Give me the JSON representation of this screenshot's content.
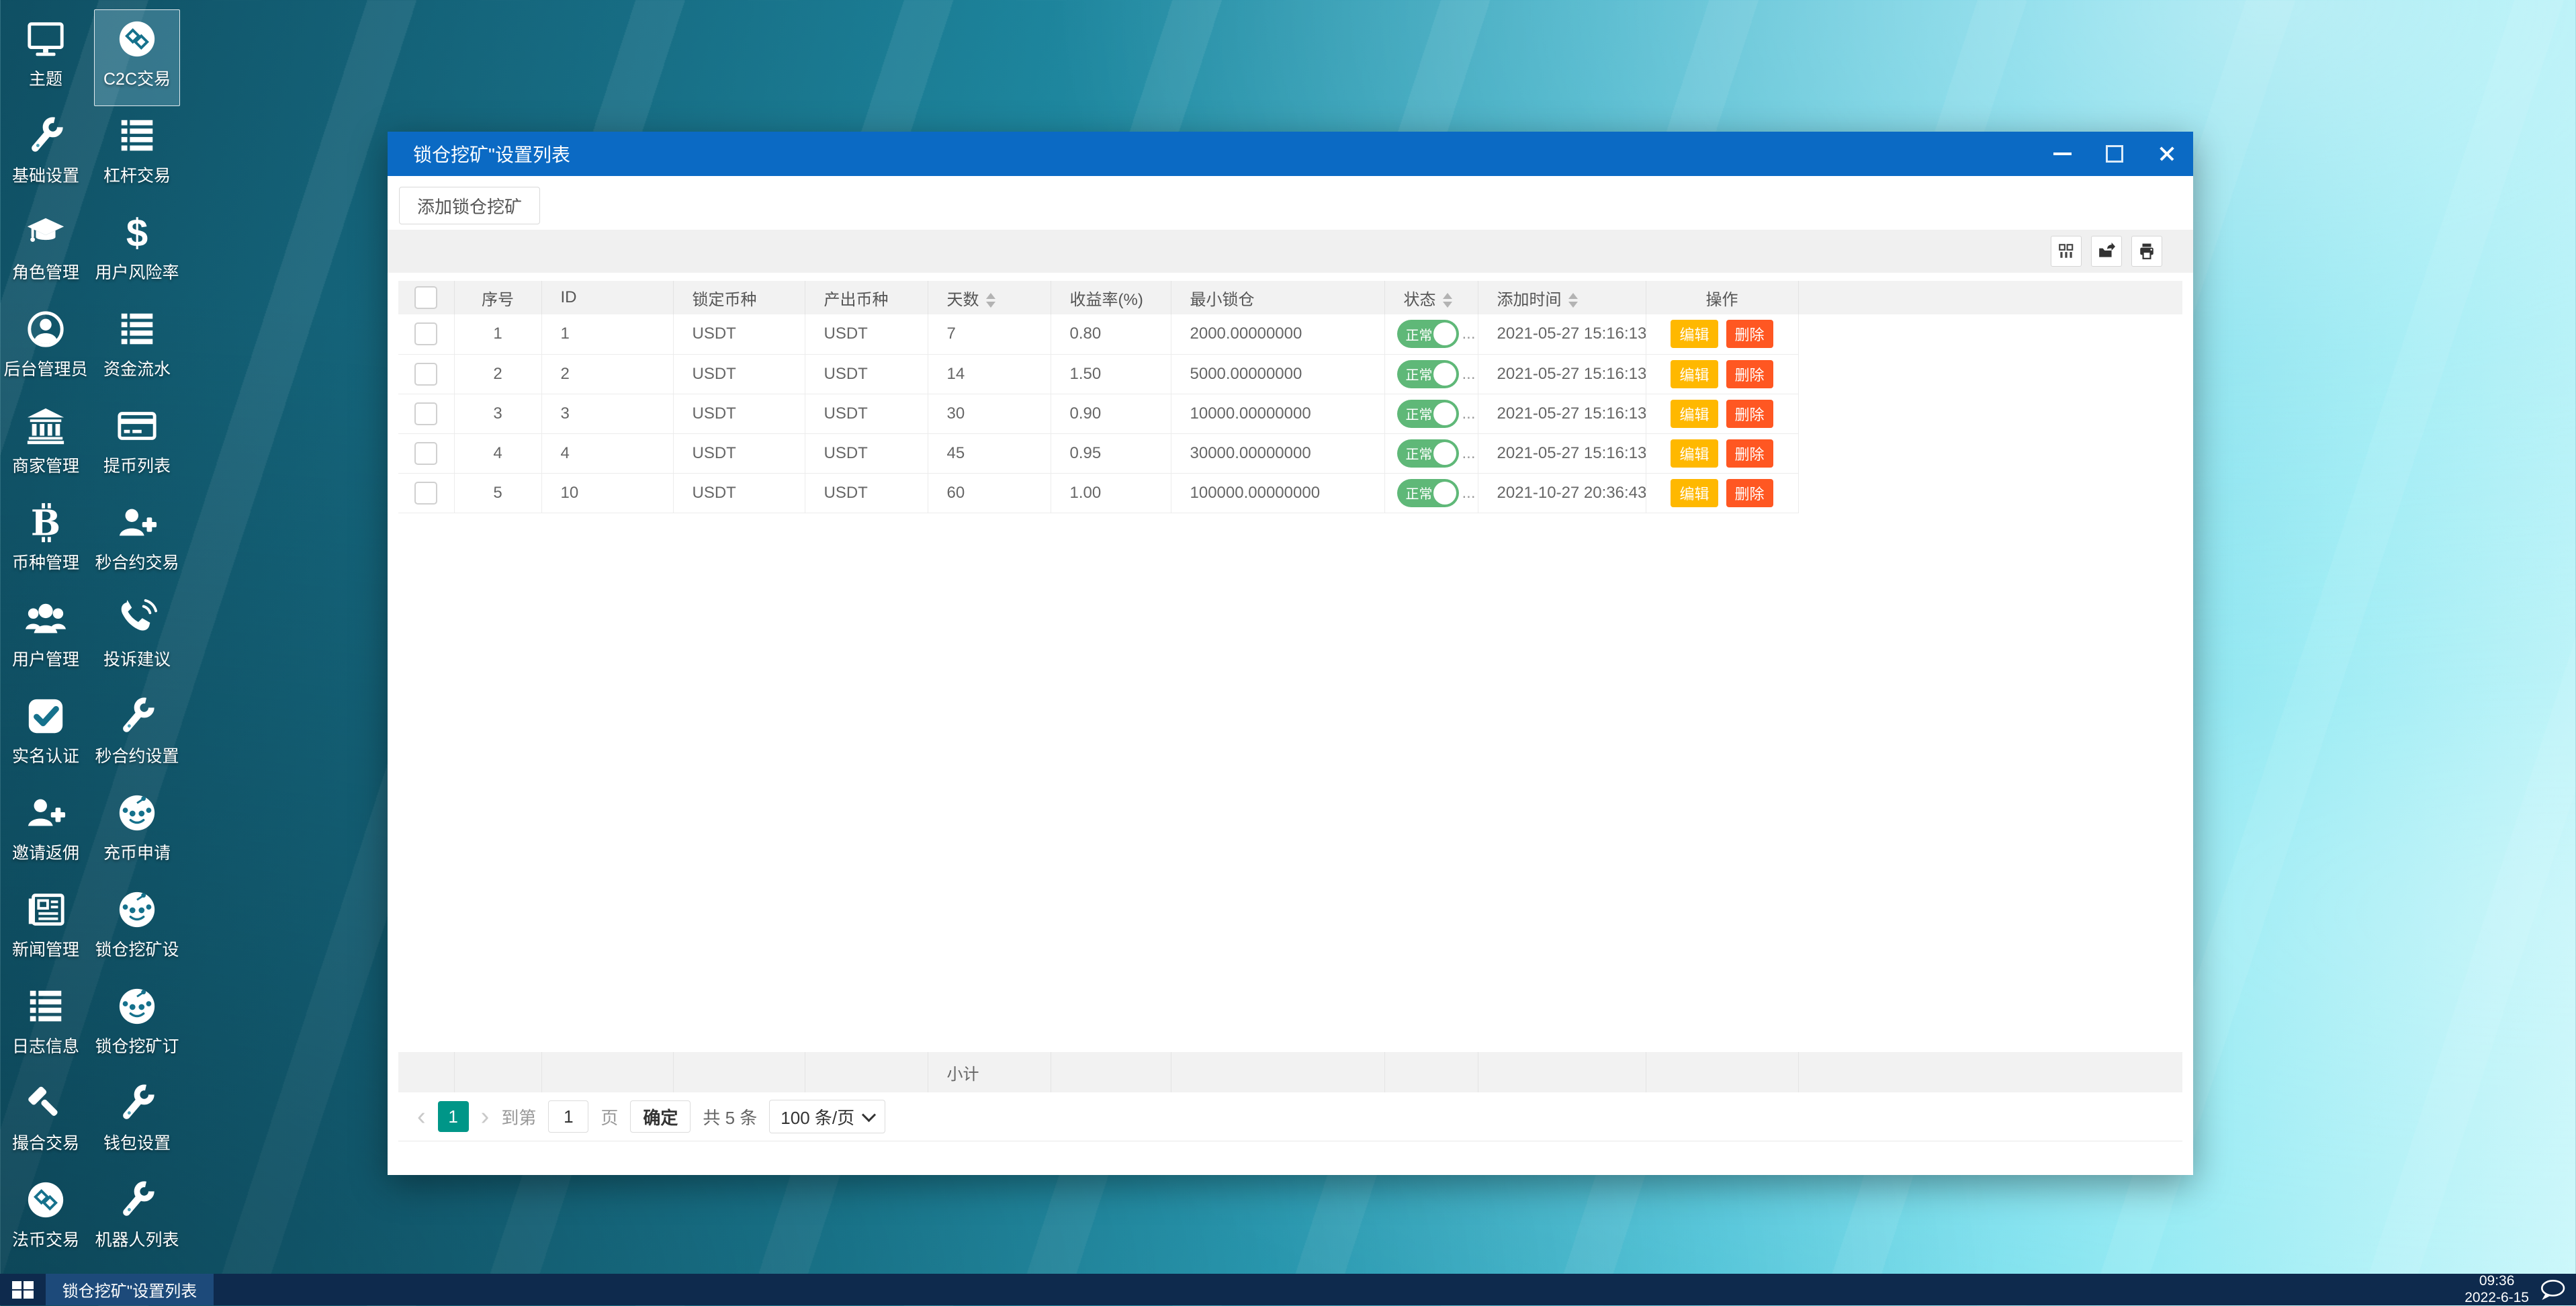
{
  "desktop": {
    "columns": [
      {
        "items": [
          {
            "label": "主题",
            "icon": "monitor"
          },
          {
            "label": "基础设置",
            "icon": "wrench"
          },
          {
            "label": "角色管理",
            "icon": "graduation-cap"
          },
          {
            "label": "后台管理员",
            "icon": "user-circle"
          },
          {
            "label": "商家管理",
            "icon": "bank"
          },
          {
            "label": "币种管理",
            "icon": "bitcoin"
          },
          {
            "label": "用户管理",
            "icon": "users"
          },
          {
            "label": "实名认证",
            "icon": "check-square"
          },
          {
            "label": "邀请返佣",
            "icon": "user-plus"
          },
          {
            "label": "新闻管理",
            "icon": "newspaper"
          },
          {
            "label": "日志信息",
            "icon": "list"
          },
          {
            "label": "撮合交易",
            "icon": "gavel"
          },
          {
            "label": "法币交易",
            "icon": "exchange-circle"
          }
        ]
      },
      {
        "items": [
          {
            "label": "C2C交易",
            "icon": "exchange-circle",
            "selected": true
          },
          {
            "label": "杠杆交易",
            "icon": "list"
          },
          {
            "label": "用户风险率",
            "icon": "dollar"
          },
          {
            "label": "资金流水",
            "icon": "list"
          },
          {
            "label": "提币列表",
            "icon": "credit-card"
          },
          {
            "label": "秒合约交易",
            "icon": "user-plus"
          },
          {
            "label": "投诉建议",
            "icon": "phone"
          },
          {
            "label": "秒合约设置",
            "icon": "wrench"
          },
          {
            "label": "充币申请",
            "icon": "reddit"
          },
          {
            "label": "锁仓挖矿设",
            "icon": "reddit"
          },
          {
            "label": "锁仓挖矿订",
            "icon": "reddit"
          },
          {
            "label": "钱包设置",
            "icon": "wrench"
          },
          {
            "label": "机器人列表",
            "icon": "wrench"
          }
        ]
      }
    ]
  },
  "window": {
    "title": "锁仓挖矿\"设置列表",
    "controls": {
      "minimize": "minimize",
      "maximize": "maximize",
      "close": "close"
    },
    "add_button_label": "添加锁仓挖矿",
    "toolbar_icons": [
      "columns",
      "export",
      "print"
    ],
    "table": {
      "columns": [
        {
          "label": "",
          "type": "checkbox"
        },
        {
          "label": "序号",
          "align": "center"
        },
        {
          "label": "ID"
        },
        {
          "label": "锁定币种"
        },
        {
          "label": "产出币种"
        },
        {
          "label": "天数",
          "sortable": true
        },
        {
          "label": "收益率(%)"
        },
        {
          "label": "最小锁仓"
        },
        {
          "label": "状态",
          "sortable": true
        },
        {
          "label": "添加时间",
          "sortable": true
        },
        {
          "label": "操作",
          "align": "center"
        },
        {
          "label": "",
          "type": "filler"
        }
      ],
      "rows": [
        {
          "seq": "1",
          "id": "1",
          "lock_coin": "USDT",
          "out_coin": "USDT",
          "days": "7",
          "rate": "0.80",
          "min_lock": "2000.00000000",
          "status": "正常",
          "added": "2021-05-27 15:16:13"
        },
        {
          "seq": "2",
          "id": "2",
          "lock_coin": "USDT",
          "out_coin": "USDT",
          "days": "14",
          "rate": "1.50",
          "min_lock": "5000.00000000",
          "status": "正常",
          "added": "2021-05-27 15:16:13"
        },
        {
          "seq": "3",
          "id": "3",
          "lock_coin": "USDT",
          "out_coin": "USDT",
          "days": "30",
          "rate": "0.90",
          "min_lock": "10000.00000000",
          "status": "正常",
          "added": "2021-05-27 15:16:13"
        },
        {
          "seq": "4",
          "id": "4",
          "lock_coin": "USDT",
          "out_coin": "USDT",
          "days": "45",
          "rate": "0.95",
          "min_lock": "30000.00000000",
          "status": "正常",
          "added": "2021-05-27 15:16:13"
        },
        {
          "seq": "5",
          "id": "10",
          "lock_coin": "USDT",
          "out_coin": "USDT",
          "days": "60",
          "rate": "1.00",
          "min_lock": "100000.00000000",
          "status": "正常",
          "added": "2021-10-27 20:36:43"
        }
      ],
      "status_suffix": "...",
      "row_actions": [
        "编辑",
        "删除"
      ],
      "subtotal_label": "小计"
    },
    "pagination": {
      "prev": "‹",
      "current_page": "1",
      "next": "›",
      "goto_prefix": "到第",
      "goto_value": "1",
      "goto_suffix": "页",
      "confirm_label": "确定",
      "total_label": "共 5 条",
      "page_size_label": "100 条/页"
    }
  },
  "taskbar": {
    "task_label": "锁仓挖矿\"设置列表",
    "time": "09:36",
    "date": "2022-6-15"
  },
  "colors": {
    "titlebar_blue": "#0b6ac4",
    "toggle_green": "#5FB878",
    "edit_orange": "#FFB800",
    "delete_red": "#FF5722",
    "page_active_teal": "#009688",
    "taskbar_navy": "#0e2a4d"
  }
}
